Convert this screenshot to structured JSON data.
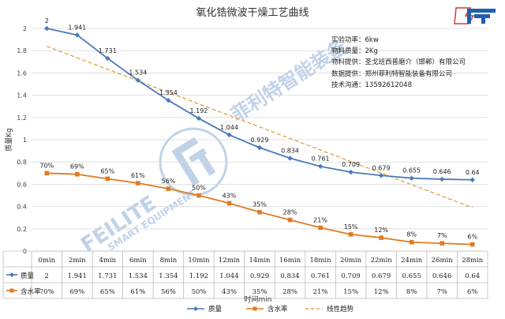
{
  "chart_data": {
    "type": "line",
    "title": "氧化锆微波干燥工艺曲线",
    "xlabel": "时间min",
    "ylabel": "质量Kg",
    "ylim": [
      0,
      2
    ],
    "yticks": [
      "0",
      "0.2",
      "0.4",
      "0.6",
      "0.8",
      "1",
      "1.2",
      "1.4",
      "1.6",
      "1.8",
      "2"
    ],
    "grid": true,
    "categories": [
      "0min",
      "2min",
      "4min",
      "6min",
      "8min",
      "10min",
      "12min",
      "14min",
      "16min",
      "18min",
      "20min",
      "22min",
      "24min",
      "26min",
      "28min"
    ],
    "series": [
      {
        "name": "质量",
        "color": "#4a7ab8",
        "marker": "diamond",
        "values": [
          2,
          1.941,
          1.731,
          1.534,
          1.354,
          1.192,
          1.044,
          0.929,
          0.834,
          0.761,
          0.709,
          0.679,
          0.655,
          0.646,
          0.64
        ],
        "labels": [
          "2",
          "1.941",
          "1.731",
          "1.534",
          "1.354",
          "1.192",
          "1.044",
          "0.929",
          "0.834",
          "0.761",
          "0.709",
          "0.679",
          "0.655",
          "0.646",
          "0.64"
        ]
      },
      {
        "name": "含水率",
        "color": "#e07b24",
        "marker": "square",
        "values": [
          0.7,
          0.69,
          0.65,
          0.61,
          0.56,
          0.5,
          0.43,
          0.35,
          0.28,
          0.21,
          0.15,
          0.12,
          0.08,
          0.07,
          0.06
        ],
        "labels": [
          "70%",
          "69%",
          "65%",
          "61%",
          "56%",
          "50%",
          "43%",
          "35%",
          "28%",
          "21%",
          "15%",
          "12%",
          "8%",
          "7%",
          "6%"
        ]
      }
    ],
    "trendline": {
      "name": "线性趋势",
      "color": "#e0a040",
      "start": 1.84,
      "end": 0.39
    },
    "data_table": true,
    "legend_position": "bottom"
  },
  "info": [
    "实验功率：6kw",
    "物料质量：2Kg",
    "物料提供：圣戈班西普磨介（邯郸）有限公司",
    "数据提供：郑州菲利特智能装备有限公司",
    "技术沟通：13592612048"
  ],
  "watermark": {
    "text_cn": "菲利特智能装备",
    "text_en": "FEILITE",
    "text_en2": "SMART EQUIPMENT"
  },
  "colors": {
    "mass": "#4a7ab8",
    "moisture": "#e07b24",
    "trend": "#e0a040",
    "grid": "#d9d9d9",
    "logo": "#1f5fb0"
  }
}
